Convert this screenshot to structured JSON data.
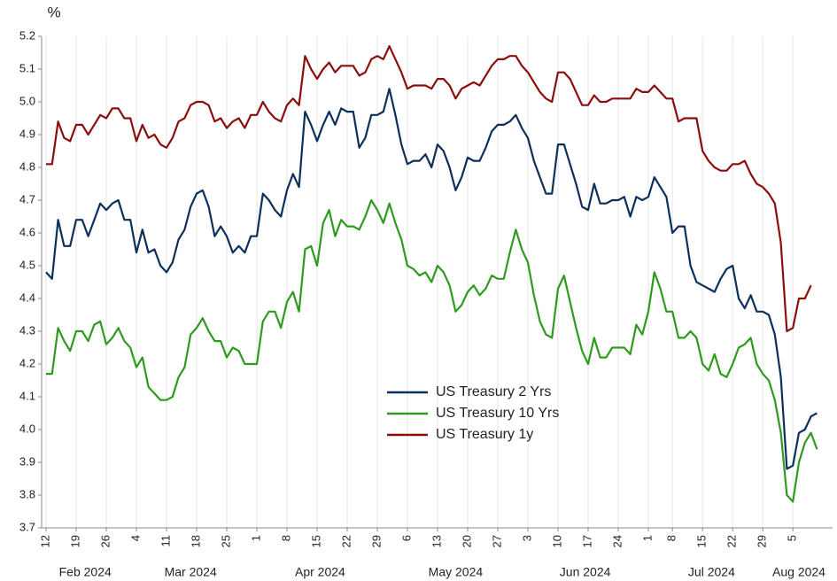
{
  "chart_data": {
    "type": "line",
    "ylabel": "%",
    "x": [
      "2024-02-12",
      "2024-02-13",
      "2024-02-14",
      "2024-02-15",
      "2024-02-16",
      "2024-02-19",
      "2024-02-20",
      "2024-02-21",
      "2024-02-22",
      "2024-02-23",
      "2024-02-26",
      "2024-02-27",
      "2024-02-28",
      "2024-02-29",
      "2024-03-01",
      "2024-03-04",
      "2024-03-05",
      "2024-03-06",
      "2024-03-07",
      "2024-03-08",
      "2024-03-11",
      "2024-03-12",
      "2024-03-13",
      "2024-03-14",
      "2024-03-15",
      "2024-03-18",
      "2024-03-19",
      "2024-03-20",
      "2024-03-21",
      "2024-03-22",
      "2024-03-25",
      "2024-03-26",
      "2024-03-27",
      "2024-03-28",
      "2024-03-29",
      "2024-04-01",
      "2024-04-02",
      "2024-04-03",
      "2024-04-04",
      "2024-04-05",
      "2024-04-08",
      "2024-04-09",
      "2024-04-10",
      "2024-04-11",
      "2024-04-12",
      "2024-04-15",
      "2024-04-16",
      "2024-04-17",
      "2024-04-18",
      "2024-04-19",
      "2024-04-22",
      "2024-04-23",
      "2024-04-24",
      "2024-04-25",
      "2024-04-26",
      "2024-04-29",
      "2024-04-30",
      "2024-05-01",
      "2024-05-02",
      "2024-05-03",
      "2024-05-06",
      "2024-05-07",
      "2024-05-08",
      "2024-05-09",
      "2024-05-10",
      "2024-05-13",
      "2024-05-14",
      "2024-05-15",
      "2024-05-16",
      "2024-05-17",
      "2024-05-20",
      "2024-05-21",
      "2024-05-22",
      "2024-05-23",
      "2024-05-24",
      "2024-05-27",
      "2024-05-28",
      "2024-05-29",
      "2024-05-30",
      "2024-05-31",
      "2024-06-03",
      "2024-06-04",
      "2024-06-05",
      "2024-06-06",
      "2024-06-07",
      "2024-06-10",
      "2024-06-11",
      "2024-06-12",
      "2024-06-13",
      "2024-06-14",
      "2024-06-17",
      "2024-06-18",
      "2024-06-19",
      "2024-06-20",
      "2024-06-21",
      "2024-06-24",
      "2024-06-25",
      "2024-06-26",
      "2024-06-27",
      "2024-06-28",
      "2024-07-01",
      "2024-07-02",
      "2024-07-03",
      "2024-07-05",
      "2024-07-08",
      "2024-07-09",
      "2024-07-10",
      "2024-07-11",
      "2024-07-12",
      "2024-07-15",
      "2024-07-16",
      "2024-07-17",
      "2024-07-18",
      "2024-07-19",
      "2024-07-22",
      "2024-07-23",
      "2024-07-24",
      "2024-07-25",
      "2024-07-26",
      "2024-07-29",
      "2024-07-30",
      "2024-07-31",
      "2024-08-01",
      "2024-08-02",
      "2024-08-05",
      "2024-08-06",
      "2024-08-07",
      "2024-08-08",
      "2024-08-09"
    ],
    "xticks": [
      {
        "value": "2024-02-12",
        "label": "12"
      },
      {
        "value": "2024-02-19",
        "label": "19"
      },
      {
        "value": "2024-02-26",
        "label": "26"
      },
      {
        "value": "2024-03-04",
        "label": "4"
      },
      {
        "value": "2024-03-11",
        "label": "11"
      },
      {
        "value": "2024-03-18",
        "label": "18"
      },
      {
        "value": "2024-03-25",
        "label": "25"
      },
      {
        "value": "2024-04-01",
        "label": "1"
      },
      {
        "value": "2024-04-08",
        "label": "8"
      },
      {
        "value": "2024-04-15",
        "label": "15"
      },
      {
        "value": "2024-04-22",
        "label": "22"
      },
      {
        "value": "2024-04-29",
        "label": "29"
      },
      {
        "value": "2024-05-06",
        "label": "6"
      },
      {
        "value": "2024-05-13",
        "label": "13"
      },
      {
        "value": "2024-05-20",
        "label": "20"
      },
      {
        "value": "2024-05-27",
        "label": "27"
      },
      {
        "value": "2024-06-03",
        "label": "3"
      },
      {
        "value": "2024-06-10",
        "label": "10"
      },
      {
        "value": "2024-06-17",
        "label": "17"
      },
      {
        "value": "2024-06-24",
        "label": "24"
      },
      {
        "value": "2024-07-01",
        "label": "1"
      },
      {
        "value": "2024-07-08",
        "label": "8"
      },
      {
        "value": "2024-07-15",
        "label": "15"
      },
      {
        "value": "2024-07-22",
        "label": "22"
      },
      {
        "value": "2024-07-29",
        "label": "29"
      },
      {
        "value": "2024-08-05",
        "label": "5"
      }
    ],
    "month_labels": [
      {
        "value": "2024-02",
        "label": "Feb 2024"
      },
      {
        "value": "2024-03",
        "label": "Mar 2024"
      },
      {
        "value": "2024-04",
        "label": "Apr 2024"
      },
      {
        "value": "2024-05",
        "label": "May 2024"
      },
      {
        "value": "2024-06",
        "label": "Jun 2024"
      },
      {
        "value": "2024-07",
        "label": "Jul 2024"
      },
      {
        "value": "2024-08",
        "label": "Aug 2024"
      }
    ],
    "ylim": [
      3.7,
      5.2
    ],
    "yticks": [
      3.7,
      3.8,
      3.9,
      {
        "value": 4,
        "label": "4.0"
      },
      4.1,
      4.2,
      4.3,
      4.4,
      4.5,
      4.6,
      4.7,
      4.8,
      4.9,
      {
        "value": 5,
        "label": "5.0"
      },
      5.1,
      5.2
    ],
    "grid": "x",
    "legend": "center",
    "series": [
      {
        "name": "US Treasury 2 Yrs",
        "color": "#0d2f5c",
        "values": [
          4.48,
          4.46,
          4.64,
          4.56,
          4.56,
          4.64,
          4.64,
          4.59,
          4.64,
          4.69,
          4.67,
          4.69,
          4.7,
          4.64,
          4.64,
          4.54,
          4.61,
          4.54,
          4.55,
          4.5,
          4.48,
          4.51,
          4.58,
          4.61,
          4.68,
          4.72,
          4.73,
          4.68,
          4.59,
          4.62,
          4.59,
          4.54,
          4.56,
          4.54,
          4.59,
          4.59,
          4.72,
          4.7,
          4.67,
          4.65,
          4.73,
          4.78,
          4.74,
          4.97,
          4.93,
          4.88,
          4.93,
          4.97,
          4.93,
          4.98,
          4.97,
          4.97,
          4.86,
          4.89,
          4.96,
          4.96,
          4.97,
          5.04,
          4.96,
          4.87,
          4.81,
          4.82,
          4.82,
          4.84,
          4.8,
          4.87,
          4.85,
          4.8,
          4.73,
          4.77,
          4.83,
          4.82,
          4.82,
          4.86,
          4.91,
          4.93,
          4.93,
          4.94,
          4.96,
          4.92,
          4.89,
          4.82,
          4.77,
          4.72,
          4.72,
          4.87,
          4.87,
          4.81,
          4.75,
          4.68,
          4.67,
          4.75,
          4.69,
          4.69,
          4.7,
          4.7,
          4.71,
          4.65,
          4.71,
          4.7,
          4.71,
          4.77,
          4.74,
          4.71,
          4.6,
          4.62,
          4.62,
          4.5,
          4.45,
          4.44,
          4.43,
          4.42,
          4.46,
          4.49,
          4.5,
          4.4,
          4.37,
          4.41,
          4.36,
          4.36,
          4.35,
          4.29,
          4.16,
          3.88,
          3.89,
          3.99,
          4.0,
          4.04,
          4.05
        ]
      },
      {
        "name": "US Treasury 10 Yrs",
        "color": "#2e9a1e",
        "values": [
          4.17,
          4.17,
          4.31,
          4.27,
          4.24,
          4.3,
          4.3,
          4.27,
          4.32,
          4.33,
          4.26,
          4.28,
          4.31,
          4.27,
          4.25,
          4.19,
          4.22,
          4.13,
          4.11,
          4.09,
          4.09,
          4.1,
          4.16,
          4.19,
          4.29,
          4.31,
          4.34,
          4.3,
          4.27,
          4.27,
          4.22,
          4.25,
          4.24,
          4.2,
          4.2,
          4.2,
          4.33,
          4.36,
          4.36,
          4.31,
          4.39,
          4.42,
          4.36,
          4.55,
          4.56,
          4.5,
          4.63,
          4.67,
          4.59,
          4.64,
          4.62,
          4.62,
          4.61,
          4.65,
          4.7,
          4.67,
          4.63,
          4.69,
          4.63,
          4.58,
          4.5,
          4.49,
          4.47,
          4.48,
          4.45,
          4.5,
          4.48,
          4.44,
          4.36,
          4.38,
          4.42,
          4.44,
          4.41,
          4.43,
          4.47,
          4.46,
          4.46,
          4.54,
          4.61,
          4.55,
          4.51,
          4.41,
          4.33,
          4.29,
          4.28,
          4.43,
          4.47,
          4.39,
          4.31,
          4.24,
          4.2,
          4.28,
          4.22,
          4.22,
          4.25,
          4.25,
          4.25,
          4.23,
          4.32,
          4.29,
          4.36,
          4.48,
          4.43,
          4.36,
          4.36,
          4.28,
          4.28,
          4.3,
          4.28,
          4.2,
          4.18,
          4.23,
          4.17,
          4.16,
          4.2,
          4.25,
          4.26,
          4.28,
          4.2,
          4.17,
          4.15,
          4.09,
          3.99,
          3.8,
          3.78,
          3.9,
          3.96,
          3.99,
          3.94
        ]
      },
      {
        "name": "US Treasury 1y",
        "color": "#8b0d0d",
        "values": [
          4.81,
          4.81,
          4.94,
          4.89,
          4.88,
          4.93,
          4.93,
          4.9,
          4.93,
          4.96,
          4.95,
          4.98,
          4.98,
          4.95,
          4.95,
          4.88,
          4.93,
          4.89,
          4.9,
          4.87,
          4.86,
          4.89,
          4.94,
          4.95,
          4.99,
          5.0,
          5.0,
          4.99,
          4.94,
          4.95,
          4.92,
          4.94,
          4.95,
          4.92,
          4.96,
          4.96,
          5.0,
          4.97,
          4.95,
          4.94,
          4.99,
          5.01,
          4.99,
          5.14,
          5.1,
          5.07,
          5.1,
          5.12,
          5.09,
          5.11,
          5.11,
          5.11,
          5.08,
          5.09,
          5.13,
          5.14,
          5.13,
          5.17,
          5.13,
          5.09,
          5.04,
          5.05,
          5.05,
          5.05,
          5.04,
          5.07,
          5.07,
          5.05,
          5.01,
          5.04,
          5.05,
          5.06,
          5.05,
          5.08,
          5.11,
          5.13,
          5.13,
          5.14,
          5.14,
          5.11,
          5.09,
          5.06,
          5.03,
          5.01,
          5.0,
          5.09,
          5.09,
          5.07,
          5.03,
          4.99,
          4.99,
          5.02,
          5.0,
          5.0,
          5.01,
          5.01,
          5.01,
          5.01,
          5.04,
          5.03,
          5.03,
          5.05,
          5.03,
          5.01,
          5.01,
          4.94,
          4.95,
          4.95,
          4.95,
          4.85,
          4.82,
          4.8,
          4.79,
          4.79,
          4.81,
          4.81,
          4.82,
          4.78,
          4.75,
          4.74,
          4.72,
          4.69,
          4.57,
          4.3,
          4.31,
          4.4,
          4.4,
          4.44,
          null
        ]
      }
    ]
  }
}
